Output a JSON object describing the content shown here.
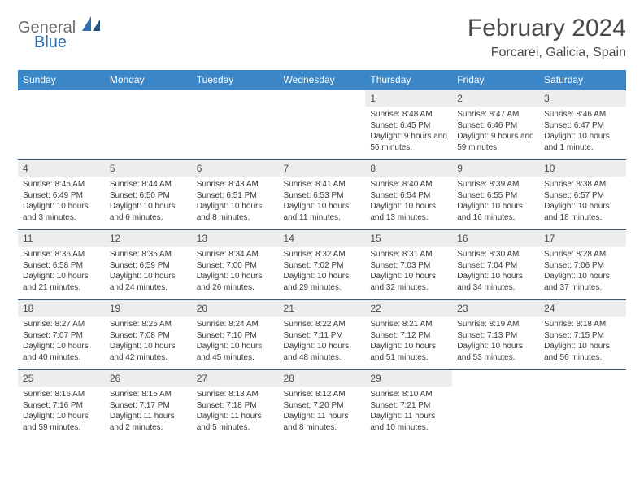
{
  "brand": {
    "gray": "General",
    "blue": "Blue"
  },
  "title": "February 2024",
  "location": "Forcarei, Galicia, Spain",
  "colors": {
    "header_bg": "#3b86c6",
    "header_text": "#ffffff",
    "daynum_bg": "#eceded",
    "border": "#3b5b78",
    "title_color": "#4a4a4a",
    "logo_gray": "#6b6b6b",
    "logo_blue": "#2f6faf"
  },
  "dow": [
    "Sunday",
    "Monday",
    "Tuesday",
    "Wednesday",
    "Thursday",
    "Friday",
    "Saturday"
  ],
  "weeks": [
    {
      "nums": [
        "",
        "",
        "",
        "",
        "1",
        "2",
        "3"
      ],
      "cells": [
        {
          "sr": "",
          "ss": "",
          "dl": ""
        },
        {
          "sr": "",
          "ss": "",
          "dl": ""
        },
        {
          "sr": "",
          "ss": "",
          "dl": ""
        },
        {
          "sr": "",
          "ss": "",
          "dl": ""
        },
        {
          "sr": "Sunrise: 8:48 AM",
          "ss": "Sunset: 6:45 PM",
          "dl": "Daylight: 9 hours and 56 minutes."
        },
        {
          "sr": "Sunrise: 8:47 AM",
          "ss": "Sunset: 6:46 PM",
          "dl": "Daylight: 9 hours and 59 minutes."
        },
        {
          "sr": "Sunrise: 8:46 AM",
          "ss": "Sunset: 6:47 PM",
          "dl": "Daylight: 10 hours and 1 minute."
        }
      ]
    },
    {
      "nums": [
        "4",
        "5",
        "6",
        "7",
        "8",
        "9",
        "10"
      ],
      "cells": [
        {
          "sr": "Sunrise: 8:45 AM",
          "ss": "Sunset: 6:49 PM",
          "dl": "Daylight: 10 hours and 3 minutes."
        },
        {
          "sr": "Sunrise: 8:44 AM",
          "ss": "Sunset: 6:50 PM",
          "dl": "Daylight: 10 hours and 6 minutes."
        },
        {
          "sr": "Sunrise: 8:43 AM",
          "ss": "Sunset: 6:51 PM",
          "dl": "Daylight: 10 hours and 8 minutes."
        },
        {
          "sr": "Sunrise: 8:41 AM",
          "ss": "Sunset: 6:53 PM",
          "dl": "Daylight: 10 hours and 11 minutes."
        },
        {
          "sr": "Sunrise: 8:40 AM",
          "ss": "Sunset: 6:54 PM",
          "dl": "Daylight: 10 hours and 13 minutes."
        },
        {
          "sr": "Sunrise: 8:39 AM",
          "ss": "Sunset: 6:55 PM",
          "dl": "Daylight: 10 hours and 16 minutes."
        },
        {
          "sr": "Sunrise: 8:38 AM",
          "ss": "Sunset: 6:57 PM",
          "dl": "Daylight: 10 hours and 18 minutes."
        }
      ]
    },
    {
      "nums": [
        "11",
        "12",
        "13",
        "14",
        "15",
        "16",
        "17"
      ],
      "cells": [
        {
          "sr": "Sunrise: 8:36 AM",
          "ss": "Sunset: 6:58 PM",
          "dl": "Daylight: 10 hours and 21 minutes."
        },
        {
          "sr": "Sunrise: 8:35 AM",
          "ss": "Sunset: 6:59 PM",
          "dl": "Daylight: 10 hours and 24 minutes."
        },
        {
          "sr": "Sunrise: 8:34 AM",
          "ss": "Sunset: 7:00 PM",
          "dl": "Daylight: 10 hours and 26 minutes."
        },
        {
          "sr": "Sunrise: 8:32 AM",
          "ss": "Sunset: 7:02 PM",
          "dl": "Daylight: 10 hours and 29 minutes."
        },
        {
          "sr": "Sunrise: 8:31 AM",
          "ss": "Sunset: 7:03 PM",
          "dl": "Daylight: 10 hours and 32 minutes."
        },
        {
          "sr": "Sunrise: 8:30 AM",
          "ss": "Sunset: 7:04 PM",
          "dl": "Daylight: 10 hours and 34 minutes."
        },
        {
          "sr": "Sunrise: 8:28 AM",
          "ss": "Sunset: 7:06 PM",
          "dl": "Daylight: 10 hours and 37 minutes."
        }
      ]
    },
    {
      "nums": [
        "18",
        "19",
        "20",
        "21",
        "22",
        "23",
        "24"
      ],
      "cells": [
        {
          "sr": "Sunrise: 8:27 AM",
          "ss": "Sunset: 7:07 PM",
          "dl": "Daylight: 10 hours and 40 minutes."
        },
        {
          "sr": "Sunrise: 8:25 AM",
          "ss": "Sunset: 7:08 PM",
          "dl": "Daylight: 10 hours and 42 minutes."
        },
        {
          "sr": "Sunrise: 8:24 AM",
          "ss": "Sunset: 7:10 PM",
          "dl": "Daylight: 10 hours and 45 minutes."
        },
        {
          "sr": "Sunrise: 8:22 AM",
          "ss": "Sunset: 7:11 PM",
          "dl": "Daylight: 10 hours and 48 minutes."
        },
        {
          "sr": "Sunrise: 8:21 AM",
          "ss": "Sunset: 7:12 PM",
          "dl": "Daylight: 10 hours and 51 minutes."
        },
        {
          "sr": "Sunrise: 8:19 AM",
          "ss": "Sunset: 7:13 PM",
          "dl": "Daylight: 10 hours and 53 minutes."
        },
        {
          "sr": "Sunrise: 8:18 AM",
          "ss": "Sunset: 7:15 PM",
          "dl": "Daylight: 10 hours and 56 minutes."
        }
      ]
    },
    {
      "nums": [
        "25",
        "26",
        "27",
        "28",
        "29",
        "",
        ""
      ],
      "cells": [
        {
          "sr": "Sunrise: 8:16 AM",
          "ss": "Sunset: 7:16 PM",
          "dl": "Daylight: 10 hours and 59 minutes."
        },
        {
          "sr": "Sunrise: 8:15 AM",
          "ss": "Sunset: 7:17 PM",
          "dl": "Daylight: 11 hours and 2 minutes."
        },
        {
          "sr": "Sunrise: 8:13 AM",
          "ss": "Sunset: 7:18 PM",
          "dl": "Daylight: 11 hours and 5 minutes."
        },
        {
          "sr": "Sunrise: 8:12 AM",
          "ss": "Sunset: 7:20 PM",
          "dl": "Daylight: 11 hours and 8 minutes."
        },
        {
          "sr": "Sunrise: 8:10 AM",
          "ss": "Sunset: 7:21 PM",
          "dl": "Daylight: 11 hours and 10 minutes."
        },
        {
          "sr": "",
          "ss": "",
          "dl": ""
        },
        {
          "sr": "",
          "ss": "",
          "dl": ""
        }
      ]
    }
  ]
}
